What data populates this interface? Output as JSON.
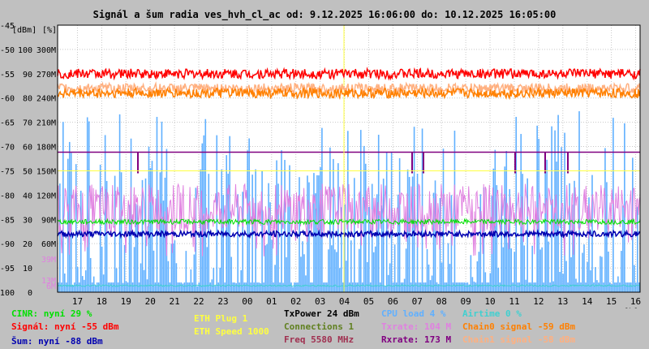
{
  "chart_data": {
    "type": "line",
    "title": "Signál a šum radia ves_hvh_cl_ac od: 9.12.2025 16:06:00 do: 10.12.2025 16:05:00",
    "x_unit_label": "[h]",
    "x_ticks": [
      "17",
      "18",
      "19",
      "20",
      "21",
      "22",
      "23",
      "00",
      "01",
      "02",
      "03",
      "04",
      "05",
      "06",
      "07",
      "08",
      "09",
      "10",
      "11",
      "12",
      "13",
      "14",
      "15",
      "16"
    ],
    "ylabel_dbm": "[dBm]",
    "ylabel_pct": "[%]",
    "yaxis_dbm": {
      "ticks": [
        "-45",
        "-50",
        "-55",
        "-60",
        "-65",
        "-70",
        "-75",
        "-80",
        "-85",
        "-90",
        "-95",
        "-100"
      ],
      "range": [
        -100,
        -45
      ]
    },
    "yaxis_pct": {
      "ticks": [
        "100",
        "90",
        "80",
        "70",
        "60",
        "50",
        "40",
        "30",
        "20",
        "10",
        "0"
      ],
      "range": [
        0,
        100
      ]
    },
    "yaxis_rate": {
      "ticks": [
        "300M",
        "270M",
        "240M",
        "210M",
        "180M",
        "150M",
        "120M",
        "90M",
        "60M"
      ],
      "range": [
        0,
        330
      ]
    },
    "yaxis_rate_aux": {
      "ticks": [
        "39M",
        "13M",
        "6M"
      ],
      "colors": [
        "#e080e0",
        "#e080e0",
        "#e080e0"
      ]
    },
    "series": [
      {
        "name": "CINR",
        "unit": "%",
        "color": "#00e000",
        "center": 29,
        "jitter": 1
      },
      {
        "name": "Signál",
        "unit": "dBm",
        "color": "#ff0000",
        "center": -55,
        "jitter": 1
      },
      {
        "name": "Šum",
        "unit": "dBm",
        "color": "#0000b0",
        "center": -88,
        "jitter": 0.6
      },
      {
        "name": "Chain0 signal",
        "unit": "dBm",
        "color": "#ff8000",
        "center": -59,
        "jitter": 1
      },
      {
        "name": "Chain1 signal",
        "unit": "dBm",
        "color": "#ffb080",
        "center": -58,
        "jitter": 1
      },
      {
        "name": "Txrate",
        "unit": "M",
        "color": "#e080e0",
        "center": 104,
        "jitter": 30
      },
      {
        "name": "Rxrate",
        "unit": "M",
        "color": "#800080",
        "center": 173,
        "jitter": 0
      },
      {
        "name": "CPU load",
        "unit": "%",
        "color": "#60b0ff",
        "center": 4,
        "jitter": 4
      },
      {
        "name": "Airtime",
        "unit": "%",
        "color": "#40d0d0",
        "center": 0,
        "jitter": 1
      }
    ]
  },
  "legend": {
    "cinr": "CINR: nyní 29 %",
    "signal": "Signál: nyní -55 dBm",
    "noise": "Šum: nyní -88 dBm",
    "eth_plug": "ETH Plug 1",
    "eth_speed": "ETH Speed 1000",
    "txpower": "TxPower 24 dBm",
    "connections": "Connections 1",
    "freq": "Freq 5580 MHz",
    "cpu": "CPU load 4 %",
    "txrate": "Txrate: 104 M",
    "rxrate": "Rxrate: 173 M",
    "airtime": "Airtime 0 %",
    "chain0": "Chain0 signal -59 dBm",
    "chain1": "Chain1 signal -58 dBm"
  },
  "colors": {
    "cinr": "#00e000",
    "signal": "#ff0000",
    "noise": "#0000b0",
    "eth": "#ffff40",
    "txpower": "#000000",
    "connections": "#608020",
    "freq": "#a03050",
    "cpu": "#60b0ff",
    "txrate": "#e080e0",
    "rxrate": "#800080",
    "airtime": "#40d0d0",
    "chain0": "#ff8000",
    "chain1": "#ffb080"
  }
}
